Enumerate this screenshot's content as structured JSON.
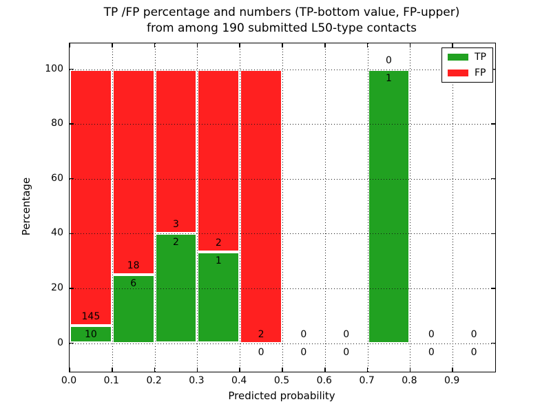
{
  "title": {
    "line1": "TP /FP percentage and numbers (TP-bottom value, FP-upper)",
    "line2": "from among 190 submitted L50-type contacts"
  },
  "legend": {
    "items": [
      {
        "label": "TP",
        "color": "#21a121"
      },
      {
        "label": "FP",
        "color": "#ff2020"
      }
    ]
  },
  "colors": {
    "tp_green": "#21a121",
    "fp_red": "#ff2020",
    "axis_black": "#000000",
    "background": "#ffffff"
  },
  "chart_data": {
    "type": "bar",
    "stacked": true,
    "title": "TP /FP percentage and numbers (TP-bottom value, FP-upper)\nfrom among 190 submitted L50-type contacts",
    "xlabel": "Predicted probability",
    "ylabel": "Percentage",
    "total_contacts": 190,
    "xlim": [
      0.0,
      1.0
    ],
    "ylim": [
      -11,
      109
    ],
    "bin_width": 0.1,
    "grid": true,
    "grid_style": "dotted",
    "legend_position": "upper right",
    "x_ticks": [
      0.0,
      0.1,
      0.2,
      0.3,
      0.4,
      0.5,
      0.6,
      0.7,
      0.8,
      0.9
    ],
    "x_tick_labels": [
      "0.0",
      "0.1",
      "0.2",
      "0.3",
      "0.4",
      "0.5",
      "0.6",
      "0.7",
      "0.8",
      "0.9"
    ],
    "y_ticks": [
      0,
      20,
      40,
      60,
      80,
      100
    ],
    "y_tick_labels": [
      "0",
      "20",
      "40",
      "60",
      "80",
      "100"
    ],
    "bins": [
      {
        "x_start": 0.0,
        "x_end": 0.1,
        "tp_count": 10,
        "fp_count": 145,
        "tp_pct": 6.45,
        "fp_pct": 93.55
      },
      {
        "x_start": 0.1,
        "x_end": 0.2,
        "tp_count": 6,
        "fp_count": 18,
        "tp_pct": 25.0,
        "fp_pct": 75.0
      },
      {
        "x_start": 0.2,
        "x_end": 0.3,
        "tp_count": 2,
        "fp_count": 3,
        "tp_pct": 40.0,
        "fp_pct": 60.0
      },
      {
        "x_start": 0.3,
        "x_end": 0.4,
        "tp_count": 1,
        "fp_count": 2,
        "tp_pct": 33.33,
        "fp_pct": 66.67
      },
      {
        "x_start": 0.4,
        "x_end": 0.5,
        "tp_count": 0,
        "fp_count": 2,
        "tp_pct": 0.0,
        "fp_pct": 100.0
      },
      {
        "x_start": 0.5,
        "x_end": 0.6,
        "tp_count": 0,
        "fp_count": 0,
        "tp_pct": 0.0,
        "fp_pct": 0.0
      },
      {
        "x_start": 0.6,
        "x_end": 0.7,
        "tp_count": 0,
        "fp_count": 0,
        "tp_pct": 0.0,
        "fp_pct": 0.0
      },
      {
        "x_start": 0.7,
        "x_end": 0.8,
        "tp_count": 1,
        "fp_count": 0,
        "tp_pct": 100.0,
        "fp_pct": 0.0
      },
      {
        "x_start": 0.8,
        "x_end": 0.9,
        "tp_count": 0,
        "fp_count": 0,
        "tp_pct": 0.0,
        "fp_pct": 0.0
      },
      {
        "x_start": 0.9,
        "x_end": 1.0,
        "tp_count": 0,
        "fp_count": 0,
        "tp_pct": 0.0,
        "fp_pct": 0.0
      }
    ],
    "series": [
      {
        "name": "TP",
        "color": "#21a121",
        "counts": [
          10,
          6,
          2,
          1,
          0,
          0,
          0,
          1,
          0,
          0
        ],
        "values_pct": [
          6.45,
          25.0,
          40.0,
          33.33,
          0,
          0,
          0,
          100.0,
          0,
          0
        ]
      },
      {
        "name": "FP",
        "color": "#ff2020",
        "counts": [
          145,
          18,
          3,
          2,
          2,
          0,
          0,
          0,
          0,
          0
        ],
        "values_pct": [
          93.55,
          75.0,
          60.0,
          66.67,
          100.0,
          0,
          0,
          0,
          0,
          0
        ]
      }
    ]
  }
}
